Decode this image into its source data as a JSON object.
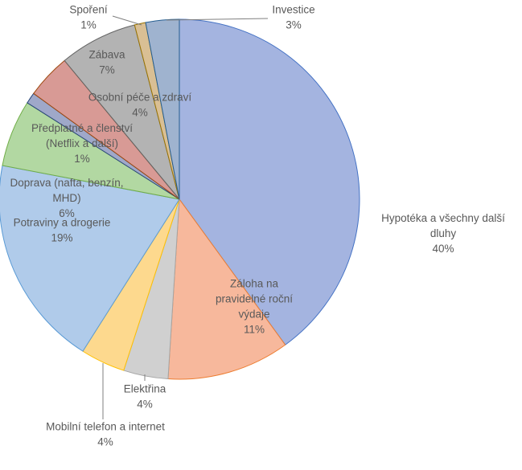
{
  "chart_data": {
    "type": "pie",
    "title": "",
    "legend": "none",
    "slices": [
      {
        "label": [
          "Hypotéka a všechny další",
          "dluhy"
        ],
        "pct_label": "40%",
        "value": 40,
        "color": "#a4b4e0",
        "stroke": "#4472c4"
      },
      {
        "label": [
          "Záloha na",
          "pravidelné roční",
          "výdaje"
        ],
        "pct_label": "11%",
        "value": 11,
        "color": "#f7b89c",
        "stroke": "#ed7d31"
      },
      {
        "label": [
          "Elektřina"
        ],
        "pct_label": "4%",
        "value": 4,
        "color": "#d0d0d0",
        "stroke": "#a5a5a5"
      },
      {
        "label": [
          "Mobilní telefon a internet"
        ],
        "pct_label": "4%",
        "value": 4,
        "color": "#fdd98e",
        "stroke": "#ffc000"
      },
      {
        "label": [
          "Potraviny a drogerie"
        ],
        "pct_label": "19%",
        "value": 19,
        "color": "#b0cbea",
        "stroke": "#5b9bd5"
      },
      {
        "label": [
          "Doprava (nafta, benzín,",
          "MHD)"
        ],
        "pct_label": "6%",
        "value": 6,
        "color": "#b2d8a2",
        "stroke": "#70ad47"
      },
      {
        "label": [
          "Předplatné a členství",
          "(Netflix a další)"
        ],
        "pct_label": "1%",
        "value": 1,
        "color": "#9fa8c9",
        "stroke": "#264478"
      },
      {
        "label": [
          "Osobní péče a zdraví"
        ],
        "pct_label": "4%",
        "value": 4,
        "color": "#d89a95",
        "stroke": "#9e480e"
      },
      {
        "label": [
          "Zábava"
        ],
        "pct_label": "7%",
        "value": 7,
        "color": "#b3b3b3",
        "stroke": "#636363"
      },
      {
        "label": [
          "Spoření"
        ],
        "pct_label": "1%",
        "value": 1,
        "color": "#d9bf94",
        "stroke": "#997300"
      },
      {
        "label": [
          "Investice"
        ],
        "pct_label": "3%",
        "value": 3,
        "color": "#9fb3cf",
        "stroke": "#255e91"
      }
    ]
  }
}
